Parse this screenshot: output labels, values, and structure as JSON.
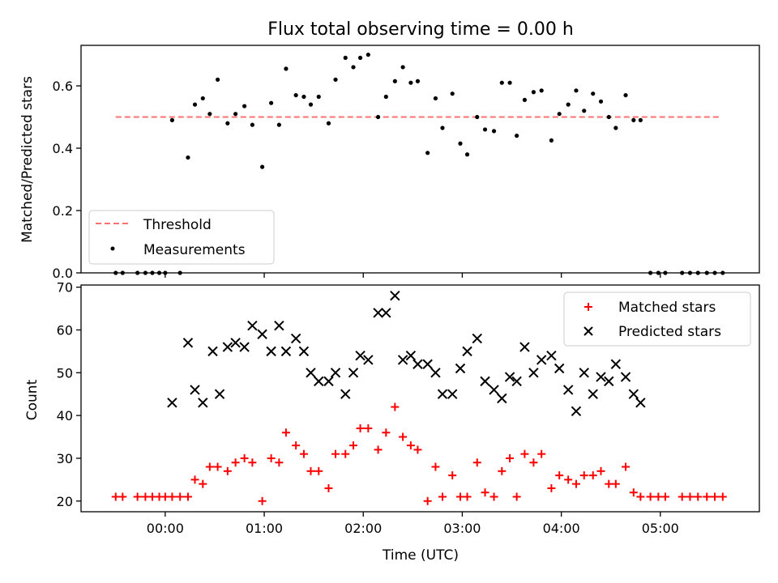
{
  "chart_data": [
    {
      "type": "scatter",
      "title": "Flux total observing time = 0.00 h",
      "xlabel": "",
      "ylabel": "Matched/Predicted stars",
      "xlim": [
        -0.85,
        6.0
      ],
      "ylim": [
        0.0,
        0.73
      ],
      "yticks": [
        0.0,
        0.2,
        0.4,
        0.6
      ],
      "ytick_labels": [
        "0.0",
        "0.2",
        "0.4",
        "0.6"
      ],
      "xticks": [
        0,
        1,
        2,
        3,
        4,
        5
      ],
      "threshold": {
        "value": 0.5,
        "x_range": [
          -0.5,
          5.6
        ],
        "color": "#ff7070",
        "label": "Threshold"
      },
      "legend": {
        "position": "lower-left",
        "entries": [
          "Threshold",
          "Measurements"
        ]
      },
      "series": [
        {
          "name": "Measurements",
          "color": "#000000",
          "marker": "dot",
          "x": [
            -0.5,
            -0.43,
            -0.28,
            -0.2,
            -0.13,
            -0.06,
            0.0,
            0.07,
            0.15,
            0.23,
            0.3,
            0.38,
            0.45,
            0.53,
            0.63,
            0.71,
            0.8,
            0.88,
            0.98,
            1.07,
            1.15,
            1.22,
            1.32,
            1.4,
            1.47,
            1.55,
            1.65,
            1.72,
            1.82,
            1.9,
            1.97,
            2.05,
            2.15,
            2.23,
            2.32,
            2.4,
            2.48,
            2.55,
            2.65,
            2.73,
            2.8,
            2.9,
            2.98,
            3.05,
            3.15,
            3.23,
            3.32,
            3.4,
            3.48,
            3.55,
            3.63,
            3.72,
            3.8,
            3.9,
            3.98,
            4.07,
            4.15,
            4.23,
            4.32,
            4.4,
            4.48,
            4.55,
            4.65,
            4.73,
            4.8,
            4.9,
            4.98,
            5.05,
            5.22,
            5.3,
            5.38,
            5.47,
            5.55,
            5.63
          ],
          "y": [
            0.0,
            0.0,
            0.0,
            0.0,
            0.0,
            0.0,
            0.0,
            0.49,
            0.0,
            0.37,
            0.54,
            0.56,
            0.51,
            0.62,
            0.48,
            0.51,
            0.535,
            0.475,
            0.34,
            0.545,
            0.475,
            0.655,
            0.57,
            0.565,
            0.54,
            0.565,
            0.48,
            0.62,
            0.69,
            0.66,
            0.69,
            0.7,
            0.5,
            0.565,
            0.615,
            0.66,
            0.61,
            0.615,
            0.385,
            0.56,
            0.465,
            0.575,
            0.415,
            0.38,
            0.5,
            0.46,
            0.455,
            0.61,
            0.61,
            0.44,
            0.555,
            0.58,
            0.585,
            0.425,
            0.51,
            0.54,
            0.585,
            0.52,
            0.575,
            0.55,
            0.5,
            0.465,
            0.57,
            0.49,
            0.49,
            0.0,
            0.0,
            0.0,
            0.0,
            0.0,
            0.0,
            0.0,
            0.0,
            0.0
          ]
        }
      ]
    },
    {
      "type": "scatter",
      "title": "",
      "xlabel": "Time (UTC)",
      "ylabel": "Count",
      "xlim": [
        -0.85,
        6.0
      ],
      "ylim": [
        17.5,
        70.5
      ],
      "yticks": [
        20,
        30,
        40,
        50,
        60,
        70
      ],
      "ytick_labels": [
        "20",
        "30",
        "40",
        "50",
        "60",
        "70"
      ],
      "xticks": [
        0,
        1,
        2,
        3,
        4,
        5
      ],
      "xtick_labels": [
        "00:00",
        "01:00",
        "02:00",
        "03:00",
        "04:00",
        "05:00"
      ],
      "legend": {
        "position": "top-right",
        "entries": [
          "Matched stars",
          "Predicted stars"
        ]
      },
      "series": [
        {
          "name": "Matched stars",
          "color": "#ff0000",
          "marker": "plus",
          "x": [
            -0.5,
            -0.43,
            -0.28,
            -0.2,
            -0.13,
            -0.06,
            0.0,
            0.07,
            0.15,
            0.23,
            0.3,
            0.38,
            0.45,
            0.53,
            0.63,
            0.71,
            0.8,
            0.88,
            0.98,
            1.07,
            1.15,
            1.22,
            1.32,
            1.4,
            1.47,
            1.55,
            1.65,
            1.72,
            1.82,
            1.9,
            1.97,
            2.05,
            2.15,
            2.23,
            2.32,
            2.4,
            2.48,
            2.55,
            2.65,
            2.73,
            2.8,
            2.9,
            2.98,
            3.05,
            3.15,
            3.23,
            3.32,
            3.4,
            3.48,
            3.55,
            3.63,
            3.72,
            3.8,
            3.9,
            3.98,
            4.07,
            4.15,
            4.23,
            4.32,
            4.4,
            4.48,
            4.55,
            4.65,
            4.73,
            4.8,
            4.9,
            4.98,
            5.05,
            5.22,
            5.3,
            5.38,
            5.47,
            5.55,
            5.63
          ],
          "y": [
            21,
            21,
            21,
            21,
            21,
            21,
            21,
            21,
            21,
            21,
            25,
            24,
            28,
            28,
            27,
            29,
            30,
            29,
            20,
            30,
            29,
            36,
            33,
            31,
            27,
            27,
            23,
            31,
            31,
            33,
            37,
            37,
            32,
            36,
            42,
            35,
            33,
            32,
            20,
            28,
            21,
            26,
            21,
            21,
            29,
            22,
            21,
            27,
            30,
            21,
            31,
            29,
            31,
            23,
            26,
            25,
            24,
            26,
            26,
            27,
            24,
            24,
            28,
            22,
            21,
            21,
            21,
            21,
            21,
            21,
            21,
            21,
            21,
            21
          ]
        },
        {
          "name": "Predicted stars",
          "color": "#000000",
          "marker": "x",
          "x": [
            0.07,
            0.23,
            0.3,
            0.38,
            0.48,
            0.55,
            0.63,
            0.71,
            0.8,
            0.88,
            0.98,
            1.07,
            1.15,
            1.22,
            1.32,
            1.4,
            1.47,
            1.55,
            1.65,
            1.72,
            1.82,
            1.9,
            1.97,
            2.05,
            2.15,
            2.23,
            2.32,
            2.4,
            2.48,
            2.55,
            2.65,
            2.73,
            2.8,
            2.9,
            2.98,
            3.05,
            3.15,
            3.23,
            3.32,
            3.4,
            3.48,
            3.55,
            3.63,
            3.72,
            3.8,
            3.9,
            3.98,
            4.07,
            4.15,
            4.23,
            4.32,
            4.4,
            4.48,
            4.55,
            4.65,
            4.73,
            4.8
          ],
          "y": [
            43,
            57,
            46,
            43,
            55,
            45,
            56,
            57,
            56,
            61,
            59,
            55,
            61,
            55,
            58,
            55,
            50,
            48,
            48,
            50,
            45,
            50,
            54,
            53,
            64,
            64,
            68,
            53,
            54,
            52,
            52,
            50,
            45,
            45,
            51,
            55,
            58,
            48,
            46,
            44,
            49,
            48,
            56,
            50,
            53,
            54,
            51,
            46,
            41,
            50,
            45,
            49,
            48,
            52,
            49,
            45,
            43
          ]
        }
      ]
    }
  ]
}
